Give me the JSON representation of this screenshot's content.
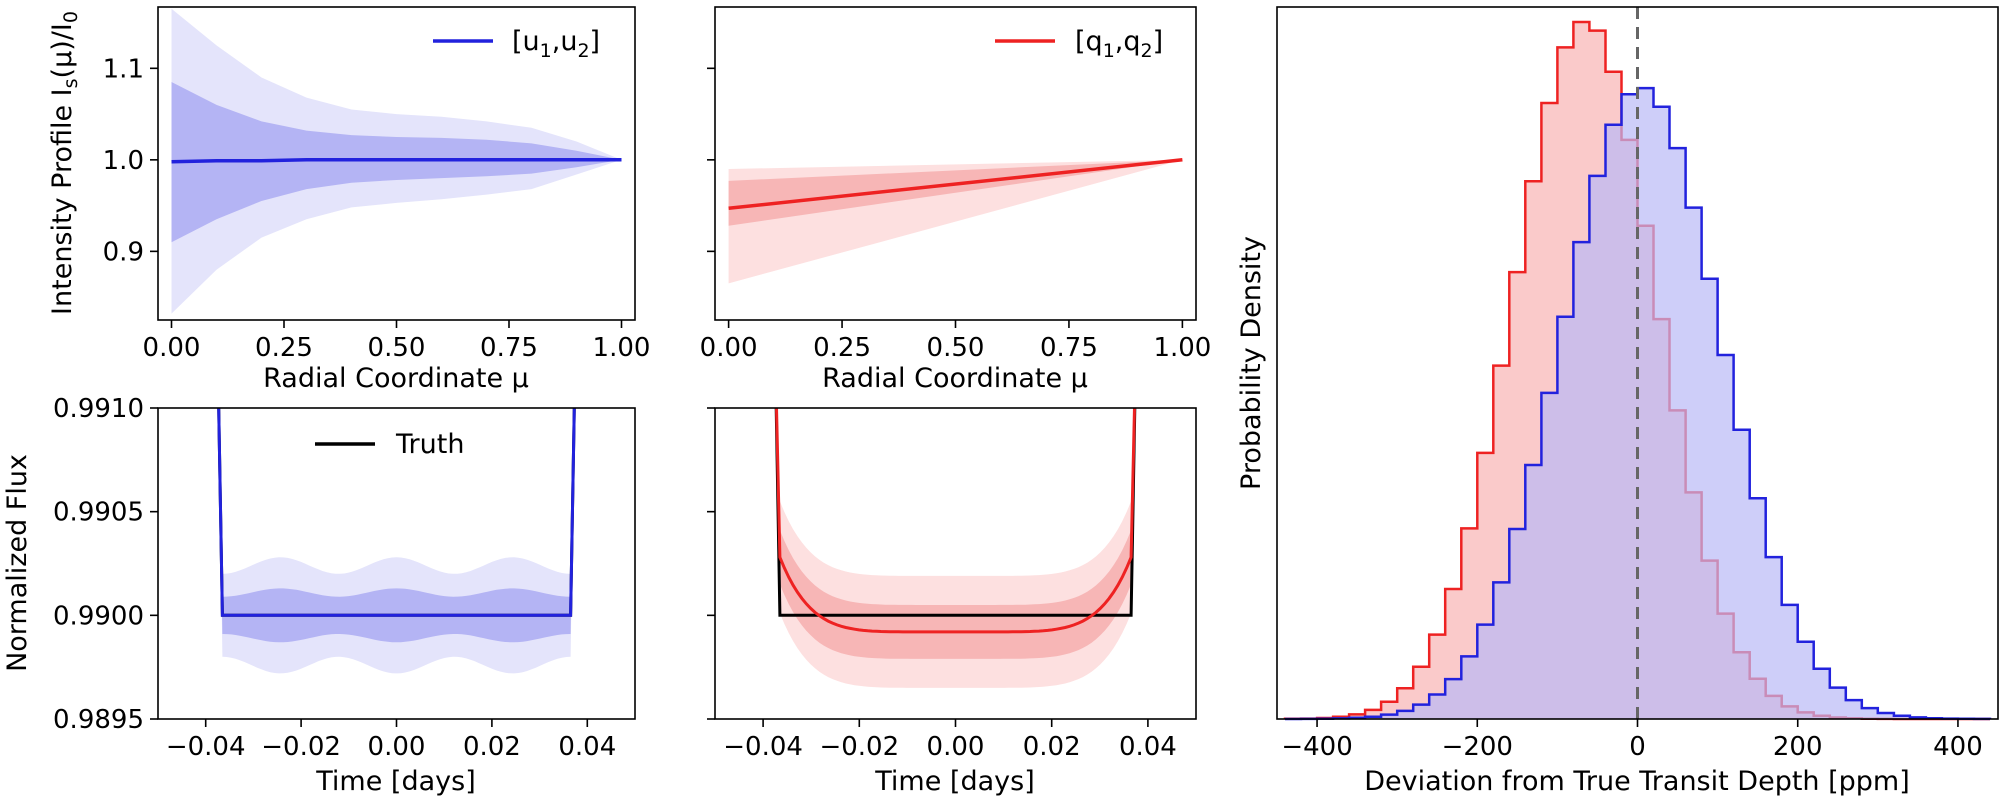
{
  "colors": {
    "blue": "#2222dd",
    "blue_outer": "#e4e4fb",
    "blue_inner": "#b4b4f4",
    "red": "#ee2222",
    "red_outer": "#fde0e0",
    "red_inner": "#f7b6b6",
    "black": "#000000",
    "gray_dash": "#666666"
  },
  "chart_data": [
    {
      "id": "intensity_u",
      "type": "line",
      "ylabel_main": "Intensity Profile I",
      "ylabel_sub": "s",
      "ylabel_paren": "(μ)/I",
      "ylabel_sub2": "0",
      "xlabel": "Radial Coordinate μ",
      "xlim": [
        -0.03,
        1.03
      ],
      "ylim": [
        0.825,
        1.167
      ],
      "xticks": [
        0,
        0.25,
        0.5,
        0.75,
        1.0
      ],
      "xtick_labels": [
        "0.00",
        "0.25",
        "0.50",
        "0.75",
        "1.00"
      ],
      "yticks": [
        0.9,
        1.0,
        1.1
      ],
      "ytick_labels": [
        "0.9",
        "1.0",
        "1.1"
      ],
      "legend": {
        "main": "[u",
        "sub1": "1",
        "mid": ",u",
        "sub2": "2",
        "end": "]",
        "color": "blue",
        "loc": "top-right"
      },
      "x": [
        0,
        0.1,
        0.2,
        0.3,
        0.4,
        0.5,
        0.6,
        0.7,
        0.8,
        0.9,
        1.0
      ],
      "median": [
        0.998,
        0.999,
        0.999,
        1.0,
        1.0,
        1.0,
        1.0,
        1.0,
        1.0,
        1.0,
        1.0
      ],
      "inner_lo": [
        0.91,
        0.935,
        0.955,
        0.968,
        0.975,
        0.978,
        0.98,
        0.982,
        0.985,
        0.992,
        1.0
      ],
      "inner_hi": [
        1.085,
        1.06,
        1.042,
        1.032,
        1.027,
        1.025,
        1.024,
        1.022,
        1.018,
        1.01,
        1.0
      ],
      "outer_lo": [
        0.832,
        0.88,
        0.915,
        0.935,
        0.948,
        0.953,
        0.957,
        0.962,
        0.968,
        0.984,
        1.0
      ],
      "outer_hi": [
        1.165,
        1.125,
        1.09,
        1.068,
        1.055,
        1.05,
        1.047,
        1.042,
        1.035,
        1.02,
        1.0
      ],
      "color": "blue",
      "inner_color": "blue_inner",
      "outer_color": "blue_outer"
    },
    {
      "id": "intensity_q",
      "type": "line",
      "xlabel": "Radial Coordinate μ",
      "xlim": [
        -0.03,
        1.03
      ],
      "ylim": [
        0.825,
        1.167
      ],
      "xticks": [
        0,
        0.25,
        0.5,
        0.75,
        1.0
      ],
      "xtick_labels": [
        "0.00",
        "0.25",
        "0.50",
        "0.75",
        "1.00"
      ],
      "yticks": [
        0.9,
        1.0,
        1.1
      ],
      "legend": {
        "main": "[q",
        "sub1": "1",
        "mid": ",q",
        "sub2": "2",
        "end": "]",
        "color": "red",
        "loc": "top-right"
      },
      "x": [
        0,
        1.0
      ],
      "median": [
        0.947,
        1.0
      ],
      "inner_lo": [
        0.928,
        1.0
      ],
      "inner_hi": [
        0.977,
        1.0
      ],
      "outer_lo": [
        0.865,
        1.0
      ],
      "outer_hi": [
        0.99,
        1.0
      ],
      "color": "red",
      "inner_color": "red_inner",
      "outer_color": "red_outer"
    },
    {
      "id": "lightcurve_u",
      "type": "line",
      "ylabel": "Normalized Flux",
      "xlabel": "Time [days]",
      "xlim": [
        -0.05,
        0.05
      ],
      "ylim": [
        0.9895,
        0.991
      ],
      "xticks": [
        -0.04,
        -0.02,
        0.0,
        0.02,
        0.04
      ],
      "xtick_labels": [
        "−0.04",
        "−0.02",
        "0.00",
        "0.02",
        "0.04"
      ],
      "yticks": [
        0.9895,
        0.99,
        0.9905,
        0.991
      ],
      "ytick_labels": [
        "0.9895",
        "0.9900",
        "0.9905",
        "0.9910"
      ],
      "legend": {
        "text": "Truth",
        "color": "black",
        "loc": "upper-center"
      },
      "depth": 0.99,
      "t_ingress": 0.0365,
      "t_edge": 0.0375,
      "inner_halfwidth": 0.00011,
      "outer_halfwidth": 0.00024,
      "wobble": 4e-05,
      "color": "blue",
      "inner_color": "blue_inner",
      "outer_color": "blue_outer"
    },
    {
      "id": "lightcurve_q",
      "type": "line",
      "xlabel": "Time [days]",
      "xlim": [
        -0.05,
        0.05
      ],
      "ylim": [
        0.9895,
        0.991
      ],
      "xticks": [
        -0.04,
        -0.02,
        0.0,
        0.02,
        0.04
      ],
      "xtick_labels": [
        "−0.04",
        "−0.02",
        "0.00",
        "0.02",
        "0.04"
      ],
      "yticks": [
        0.9895,
        0.99,
        0.9905,
        0.991
      ],
      "depth": 0.99,
      "median_center": 0.98992,
      "t_ingress": 0.0365,
      "t_edge": 0.0375,
      "inner_halfwidth": 0.00013,
      "outer_halfwidth": 0.00027,
      "color": "red",
      "inner_color": "red_inner",
      "outer_color": "red_outer"
    },
    {
      "id": "depth_hist",
      "type": "bar",
      "ylabel": "Probability Density",
      "xlabel": "Deviation from True Transit Depth [ppm]",
      "xlim": [
        -450,
        450
      ],
      "ylim": [
        0,
        1.02
      ],
      "xticks": [
        -400,
        -200,
        0,
        200,
        400
      ],
      "xtick_labels": [
        "−400",
        "−200",
        "0",
        "200",
        "400"
      ],
      "bin_width": 20,
      "series": [
        {
          "name": "[u1,u2]",
          "color": "blue",
          "mean": 5,
          "sigma": 100,
          "peak": 0.905
        },
        {
          "name": "[q1,q2]",
          "color": "red",
          "mean": -65,
          "sigma": 90,
          "peak": 1.0
        }
      ],
      "vline_x": 0
    }
  ]
}
